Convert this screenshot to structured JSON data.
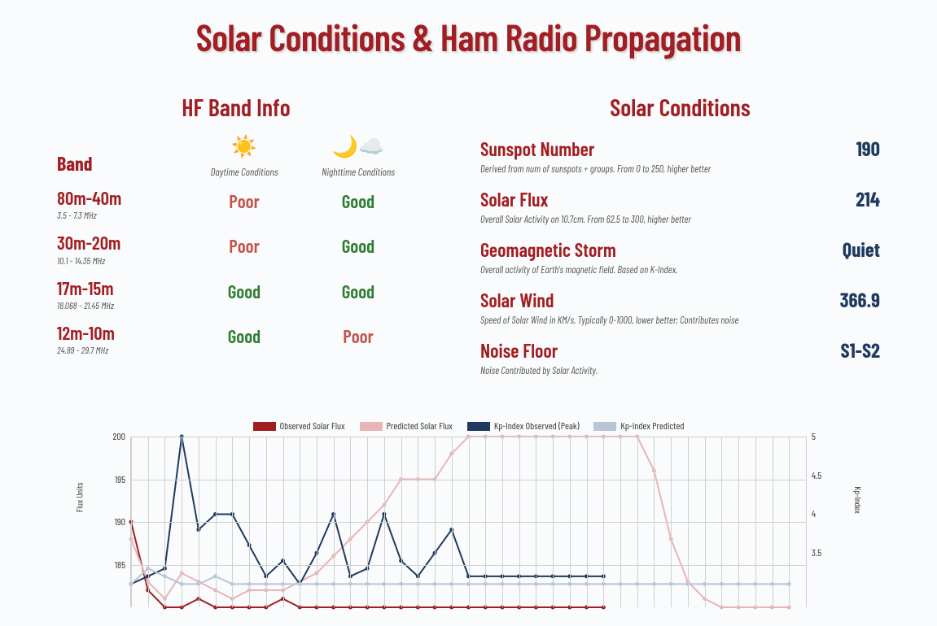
{
  "title": "Solar Conditions & Ham Radio Propagation",
  "hf": {
    "section_title": "HF Band Info",
    "band_header": "Band",
    "daytime_label": "Daytime Conditions",
    "nighttime_label": "Nighttime Conditions",
    "sun_icon": "☀️",
    "moon_icon": "🌙☁️",
    "rows": [
      {
        "band": "80m-40m",
        "freq": "3.5 - 7.3 MHz",
        "day": "Poor",
        "night": "Good"
      },
      {
        "band": "30m-20m",
        "freq": "10.1 - 14.35 MHz",
        "day": "Poor",
        "night": "Good"
      },
      {
        "band": "17m-15m",
        "freq": "18.068 - 21.45 MHz",
        "day": "Good",
        "night": "Good"
      },
      {
        "band": "12m-10m",
        "freq": "24.89 - 29.7 MHz",
        "day": "Good",
        "night": "Poor"
      }
    ]
  },
  "solar": {
    "section_title": "Solar Conditions",
    "metrics": [
      {
        "label": "Sunspot Number",
        "value": "190",
        "desc": "Derived from num of sunspots + groups. From 0 to 250, higher better"
      },
      {
        "label": "Solar Flux",
        "value": "214",
        "desc": "Overall Solar Activity on 10.7cm. From 62.5 to 300, higher better"
      },
      {
        "label": "Geomagnetic Storm",
        "value": "Quiet",
        "desc": "Overall activity of Earth's magnetic field. Based on K-Index."
      },
      {
        "label": "Solar Wind",
        "value": "366.9",
        "desc": "Speed of Solar Wind in KM/s. Typically 0-1000, lower better; Contributes noise"
      },
      {
        "label": "Noise Floor",
        "value": "S1-S2",
        "desc": "Noise Contributed by Solar Activity."
      }
    ]
  },
  "chart": {
    "legend": [
      {
        "label": "Observed Solar Flux",
        "color": "#A11E22"
      },
      {
        "label": "Predicted Solar Flux",
        "color": "#E8B5B7"
      },
      {
        "label": "Kp-Index Observed (Peak)",
        "color": "#1F3A5F"
      },
      {
        "label": "Kp-Index Predicted",
        "color": "#B8C5D6"
      }
    ],
    "y_left": {
      "title": "Flux Units",
      "min": 180,
      "max": 200,
      "ticks": [
        200,
        195,
        190,
        185
      ]
    },
    "y_right": {
      "title": "Kp-Index",
      "min": 2.8,
      "max": 5.0,
      "ticks": [
        5.0,
        4.5,
        4.0,
        3.5
      ]
    },
    "n_x_gridlines": 40,
    "series": {
      "observed_flux": {
        "color": "#A11E22",
        "axis": "left",
        "values": [
          190,
          182,
          180,
          180,
          181,
          180,
          180,
          180,
          180,
          181,
          180,
          180,
          180,
          180,
          180,
          180,
          180,
          180,
          180,
          180,
          180,
          180,
          180,
          180,
          180,
          180,
          180,
          180,
          180
        ]
      },
      "predicted_flux": {
        "color": "#E8B5B7",
        "axis": "left",
        "values": [
          188,
          183,
          181,
          184,
          183,
          182,
          181,
          182,
          182,
          182,
          183,
          184,
          186,
          188,
          190,
          192,
          195,
          195,
          195,
          198,
          200,
          200,
          200,
          200,
          200,
          200,
          200,
          200,
          200,
          200,
          200,
          196,
          188,
          183,
          181,
          180,
          180,
          180,
          180,
          180
        ]
      },
      "kp_observed": {
        "color": "#1F3A5F",
        "axis": "right",
        "values": [
          3.1,
          3.2,
          3.3,
          5.0,
          3.8,
          4.0,
          4.0,
          3.6,
          3.2,
          3.4,
          3.1,
          3.5,
          4.0,
          3.2,
          3.3,
          4.0,
          3.4,
          3.2,
          3.5,
          3.8,
          3.2,
          3.2,
          3.2,
          3.2,
          3.2,
          3.2,
          3.2,
          3.2,
          3.2
        ]
      },
      "kp_predicted": {
        "color": "#B8C5D6",
        "axis": "right",
        "values": [
          3.1,
          3.3,
          3.2,
          3.1,
          3.1,
          3.2,
          3.1,
          3.1,
          3.1,
          3.1,
          3.1,
          3.1,
          3.1,
          3.1,
          3.1,
          3.1,
          3.1,
          3.1,
          3.1,
          3.1,
          3.1,
          3.1,
          3.1,
          3.1,
          3.1,
          3.1,
          3.1,
          3.1,
          3.1,
          3.1,
          3.1,
          3.1,
          3.1,
          3.1,
          3.1,
          3.1,
          3.1,
          3.1,
          3.1,
          3.1
        ]
      }
    }
  }
}
